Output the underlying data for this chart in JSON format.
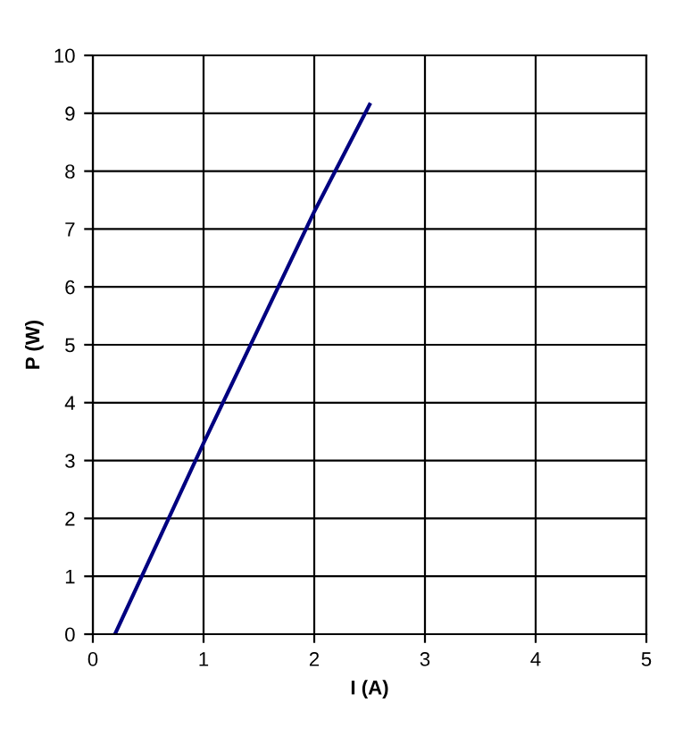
{
  "chart_data": {
    "type": "line",
    "xlabel": "I (A)",
    "ylabel": "P (W)",
    "series": [
      {
        "color": "#000080",
        "x": [
          0.2,
          1,
          2,
          2.5
        ],
        "values": [
          0,
          3.3,
          7.3,
          9.15
        ]
      }
    ],
    "xlim": [
      0,
      5
    ],
    "xticks": [
      0,
      1,
      2,
      3,
      4,
      5
    ],
    "ylim": [
      0,
      10
    ],
    "yticks": [
      0,
      1,
      2,
      3,
      4,
      5,
      6,
      7,
      8,
      9,
      10
    ],
    "grid": true,
    "marker": "none",
    "line_style": "solid"
  }
}
